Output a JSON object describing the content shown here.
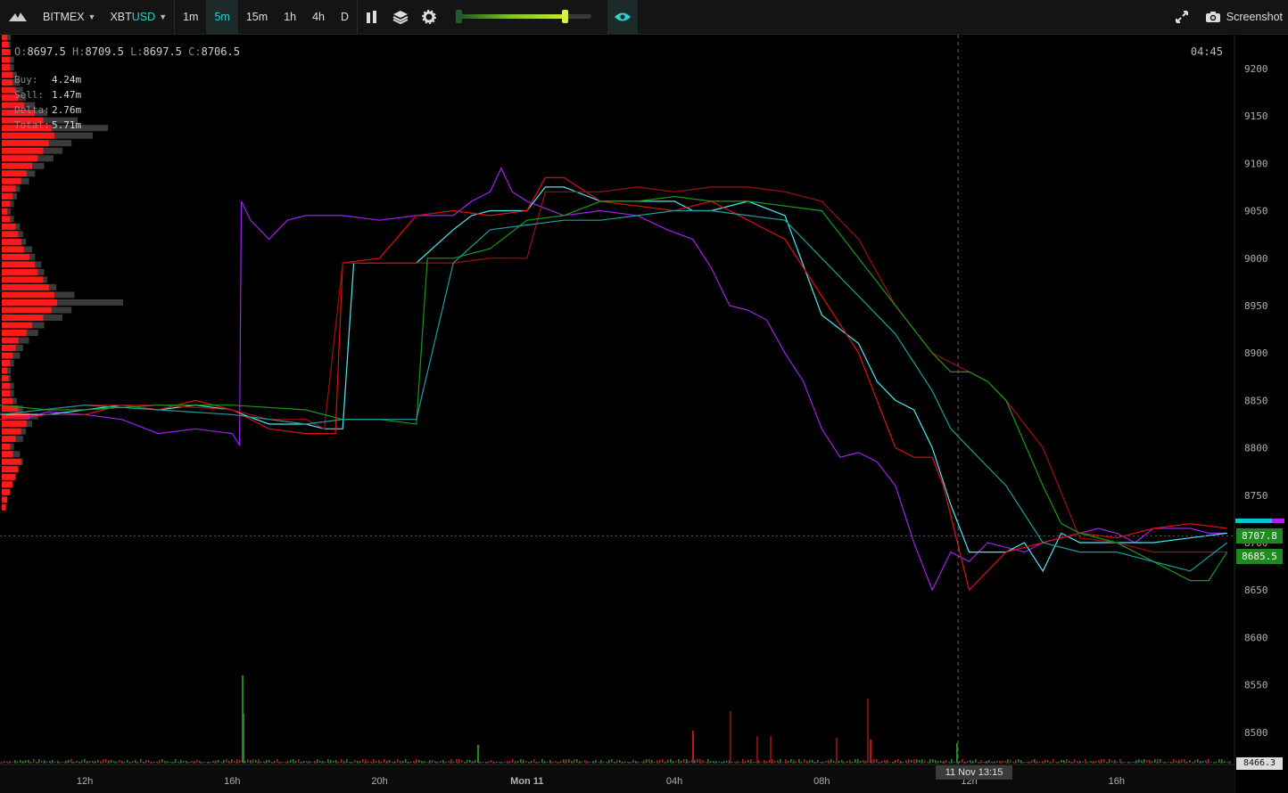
{
  "toolbar": {
    "exchange": "BITMEX",
    "symbol_base": "XBT",
    "symbol_quote": "USD",
    "timeframes": [
      "1m",
      "5m",
      "15m",
      "1h",
      "4h",
      "D"
    ],
    "active_timeframe": "5m",
    "screenshot_label": "Screenshot",
    "icons": [
      "logo-icon",
      "chevron-down-icon",
      "bar-chart-icon",
      "layers-icon",
      "gear-icon",
      "eye-icon",
      "expand-icon",
      "camera-icon"
    ],
    "slider_level": 0.8
  },
  "ohlc": {
    "o_label": "O:",
    "o": "8697.5",
    "h_label": "H:",
    "h": "8709.5",
    "l_label": "L:",
    "l": "8697.5",
    "c_label": "C:",
    "c": "8706.5"
  },
  "stats": {
    "buy_label": "Buy:",
    "buy": "4.24m",
    "sell_label": "Sell:",
    "sell": "1.47m",
    "delta_label": "Delta:",
    "delta": "2.76m",
    "total_label": "Total:",
    "total": "5.71m"
  },
  "clock": "04:45",
  "price_badges": [
    "8707.8",
    "8685.5"
  ],
  "last_price_label": "8466.3",
  "crosshair_label": "11 Nov 13:15",
  "colors": {
    "background": "#000000",
    "purple": "#a020f0",
    "cyan": "#4de8f0",
    "red": "#e01010",
    "dark_red": "#a01010",
    "green": "#1a9a1a",
    "teal": "#18a0a0",
    "profile_buy": "#ff1a1a",
    "profile_sell": "#3a3a3a",
    "badge": "#1f8a1f"
  },
  "chart_data": {
    "type": "line",
    "ylim": [
      8466,
      9230
    ],
    "y_ticks": [
      9200,
      9150,
      9100,
      9050,
      9000,
      8950,
      8900,
      8850,
      8800,
      8750,
      8700,
      8650,
      8600,
      8550,
      8500
    ],
    "x_ticks": [
      "12h",
      "16h",
      "20h",
      "Mon 11",
      "04h",
      "08h",
      "12h",
      "16h"
    ],
    "x_hours": [
      12,
      16,
      20,
      24,
      28,
      32,
      36,
      40
    ],
    "x_range_hours": [
      9.7,
      43.2
    ],
    "crosshair_hour": 35.7,
    "last_price": 8707,
    "series": [
      {
        "color_key": "purple",
        "points": [
          [
            9.7,
            8830
          ],
          [
            10.5,
            8832
          ],
          [
            11,
            8838
          ],
          [
            12,
            8835
          ],
          [
            13,
            8830
          ],
          [
            14,
            8815
          ],
          [
            15,
            8820
          ],
          [
            16,
            8815
          ],
          [
            16.2,
            8803
          ],
          [
            16.25,
            9060
          ],
          [
            16.5,
            9040
          ],
          [
            17,
            9020
          ],
          [
            17.5,
            9040
          ],
          [
            18,
            9045
          ],
          [
            19,
            9045
          ],
          [
            20,
            9040
          ],
          [
            21,
            9045
          ],
          [
            22,
            9045
          ],
          [
            22.5,
            9060
          ],
          [
            23,
            9070
          ],
          [
            23.3,
            9095
          ],
          [
            23.6,
            9070
          ],
          [
            24,
            9060
          ],
          [
            25,
            9045
          ],
          [
            26,
            9050
          ],
          [
            27,
            9045
          ],
          [
            27.8,
            9030
          ],
          [
            28.5,
            9020
          ],
          [
            29,
            8990
          ],
          [
            29.5,
            8950
          ],
          [
            30,
            8945
          ],
          [
            30.5,
            8935
          ],
          [
            31,
            8900
          ],
          [
            31.5,
            8870
          ],
          [
            32,
            8820
          ],
          [
            32.5,
            8790
          ],
          [
            33,
            8795
          ],
          [
            33.5,
            8785
          ],
          [
            34,
            8760
          ],
          [
            34.5,
            8700
          ],
          [
            35,
            8650
          ],
          [
            35.5,
            8690
          ],
          [
            36,
            8680
          ],
          [
            36.5,
            8700
          ],
          [
            37,
            8695
          ],
          [
            37.5,
            8690
          ],
          [
            38,
            8700
          ],
          [
            38.5,
            8705
          ],
          [
            39,
            8710
          ],
          [
            39.5,
            8715
          ],
          [
            40,
            8710
          ],
          [
            40.5,
            8700
          ],
          [
            41,
            8715
          ],
          [
            42,
            8715
          ],
          [
            42.5,
            8710
          ],
          [
            43,
            8710
          ]
        ]
      },
      {
        "color_key": "cyan",
        "points": [
          [
            9.7,
            8835
          ],
          [
            11,
            8835
          ],
          [
            13,
            8845
          ],
          [
            14,
            8840
          ],
          [
            15,
            8845
          ],
          [
            16,
            8840
          ],
          [
            16.3,
            8835
          ],
          [
            17,
            8825
          ],
          [
            18,
            8825
          ],
          [
            18.5,
            8820
          ],
          [
            19,
            8820
          ],
          [
            19.3,
            8995
          ],
          [
            20,
            8995
          ],
          [
            21,
            8995
          ],
          [
            22,
            9030
          ],
          [
            22.5,
            9045
          ],
          [
            23,
            9050
          ],
          [
            24,
            9050
          ],
          [
            24.5,
            9075
          ],
          [
            25,
            9075
          ],
          [
            26,
            9060
          ],
          [
            27,
            9060
          ],
          [
            28,
            9060
          ],
          [
            28.5,
            9050
          ],
          [
            29,
            9050
          ],
          [
            30,
            9060
          ],
          [
            31,
            9045
          ],
          [
            32,
            8940
          ],
          [
            33,
            8910
          ],
          [
            33.5,
            8870
          ],
          [
            34,
            8850
          ],
          [
            34.5,
            8840
          ],
          [
            35,
            8800
          ],
          [
            35.5,
            8740
          ],
          [
            36,
            8690
          ],
          [
            37,
            8690
          ],
          [
            37.5,
            8700
          ],
          [
            38,
            8670
          ],
          [
            38.5,
            8710
          ],
          [
            39,
            8700
          ],
          [
            40,
            8700
          ],
          [
            41,
            8700
          ],
          [
            42,
            8705
          ],
          [
            43,
            8710
          ]
        ]
      },
      {
        "color_key": "red",
        "points": [
          [
            9.7,
            8830
          ],
          [
            11,
            8835
          ],
          [
            12,
            8835
          ],
          [
            13,
            8845
          ],
          [
            14,
            8840
          ],
          [
            15,
            8850
          ],
          [
            16,
            8840
          ],
          [
            16.5,
            8830
          ],
          [
            17,
            8820
          ],
          [
            18,
            8815
          ],
          [
            18.8,
            8815
          ],
          [
            19,
            8995
          ],
          [
            20,
            9000
          ],
          [
            21,
            9045
          ],
          [
            22,
            9050
          ],
          [
            23,
            9045
          ],
          [
            24,
            9050
          ],
          [
            24.5,
            9085
          ],
          [
            25,
            9085
          ],
          [
            26,
            9060
          ],
          [
            27,
            9055
          ],
          [
            28,
            9050
          ],
          [
            29,
            9060
          ],
          [
            30,
            9040
          ],
          [
            31,
            9020
          ],
          [
            32,
            8960
          ],
          [
            33,
            8900
          ],
          [
            34,
            8800
          ],
          [
            34.5,
            8790
          ],
          [
            35,
            8790
          ],
          [
            35.3,
            8760
          ],
          [
            36,
            8650
          ],
          [
            36.5,
            8670
          ],
          [
            37,
            8690
          ],
          [
            38,
            8700
          ],
          [
            39,
            8710
          ],
          [
            40,
            8705
          ],
          [
            41,
            8715
          ],
          [
            42,
            8720
          ],
          [
            43,
            8715
          ]
        ]
      },
      {
        "color_key": "dark_red",
        "points": [
          [
            9.7,
            8835
          ],
          [
            12,
            8845
          ],
          [
            14,
            8845
          ],
          [
            16,
            8840
          ],
          [
            17,
            8830
          ],
          [
            18,
            8830
          ],
          [
            18.5,
            8820
          ],
          [
            19,
            8995
          ],
          [
            20,
            8995
          ],
          [
            21,
            8995
          ],
          [
            22,
            8995
          ],
          [
            23,
            9000
          ],
          [
            24,
            9000
          ],
          [
            24.5,
            9070
          ],
          [
            25,
            9070
          ],
          [
            26,
            9070
          ],
          [
            27,
            9075
          ],
          [
            28,
            9070
          ],
          [
            29,
            9075
          ],
          [
            30,
            9075
          ],
          [
            31,
            9070
          ],
          [
            32,
            9060
          ],
          [
            33,
            9020
          ],
          [
            34,
            8950
          ],
          [
            35,
            8900
          ],
          [
            36,
            8880
          ],
          [
            36.5,
            8870
          ],
          [
            37,
            8850
          ],
          [
            38,
            8800
          ],
          [
            39,
            8705
          ],
          [
            40,
            8700
          ],
          [
            41,
            8690
          ],
          [
            42,
            8690
          ],
          [
            43,
            8690
          ]
        ]
      },
      {
        "color_key": "green",
        "points": [
          [
            9.7,
            8845
          ],
          [
            11,
            8840
          ],
          [
            12,
            8840
          ],
          [
            14,
            8845
          ],
          [
            16,
            8845
          ],
          [
            18,
            8840
          ],
          [
            19,
            8830
          ],
          [
            20,
            8830
          ],
          [
            21,
            8825
          ],
          [
            21.3,
            9000
          ],
          [
            22,
            9000
          ],
          [
            23,
            9010
          ],
          [
            24,
            9040
          ],
          [
            25,
            9045
          ],
          [
            26,
            9060
          ],
          [
            27,
            9060
          ],
          [
            28,
            9065
          ],
          [
            29,
            9060
          ],
          [
            30,
            9060
          ],
          [
            31,
            9055
          ],
          [
            32,
            9050
          ],
          [
            33,
            9000
          ],
          [
            34,
            8950
          ],
          [
            35,
            8900
          ],
          [
            35.5,
            8880
          ],
          [
            36,
            8880
          ],
          [
            36.5,
            8870
          ],
          [
            37,
            8850
          ],
          [
            38,
            8760
          ],
          [
            38.5,
            8720
          ],
          [
            39,
            8710
          ],
          [
            40,
            8700
          ],
          [
            41,
            8680
          ],
          [
            42,
            8660
          ],
          [
            42.5,
            8660
          ],
          [
            43,
            8690
          ]
        ]
      },
      {
        "color_key": "teal",
        "points": [
          [
            9.7,
            8835
          ],
          [
            12,
            8845
          ],
          [
            14,
            8840
          ],
          [
            16,
            8835
          ],
          [
            18,
            8825
          ],
          [
            19,
            8830
          ],
          [
            20,
            8830
          ],
          [
            21,
            8830
          ],
          [
            22,
            8995
          ],
          [
            23,
            9030
          ],
          [
            24,
            9035
          ],
          [
            25,
            9040
          ],
          [
            26,
            9040
          ],
          [
            27,
            9045
          ],
          [
            28,
            9050
          ],
          [
            29,
            9050
          ],
          [
            30,
            9045
          ],
          [
            31,
            9040
          ],
          [
            32,
            9000
          ],
          [
            33,
            8960
          ],
          [
            34,
            8920
          ],
          [
            35,
            8860
          ],
          [
            35.5,
            8820
          ],
          [
            36,
            8800
          ],
          [
            37,
            8760
          ],
          [
            38,
            8700
          ],
          [
            39,
            8690
          ],
          [
            40,
            8690
          ],
          [
            41,
            8680
          ],
          [
            42,
            8670
          ],
          [
            43,
            8700
          ]
        ]
      }
    ],
    "volume_profile": {
      "price_step": 8,
      "buy": [
        0,
        0,
        0,
        0,
        0,
        0,
        0,
        0,
        0,
        0,
        0,
        0,
        0,
        0,
        0,
        0,
        0,
        0,
        0,
        0,
        0,
        0,
        0,
        3,
        4,
        6,
        8,
        10,
        12,
        14,
        8,
        6,
        10,
        14,
        18,
        20,
        12,
        8,
        6,
        6,
        5,
        4,
        6,
        8,
        10,
        12,
        18,
        22,
        30,
        36,
        40,
        38,
        34,
        30,
        26,
        24,
        20,
        16,
        14,
        12,
        10,
        6,
        4,
        6,
        8,
        10,
        14,
        18,
        22,
        26,
        30,
        34,
        38,
        36,
        30,
        24,
        16,
        12,
        10,
        8,
        8,
        6,
        6,
        6,
        5,
        4,
        4,
        3,
        3,
        3,
        2,
        2,
        2,
        2,
        1,
        1
      ],
      "sell": [
        0,
        0,
        0,
        0,
        0,
        0,
        0,
        0,
        0,
        0,
        0,
        0,
        0,
        0,
        0,
        0,
        0,
        0,
        0,
        0,
        0,
        0,
        0,
        2,
        2,
        4,
        6,
        8,
        10,
        14,
        12,
        8,
        14,
        16,
        20,
        24,
        14,
        10,
        8,
        8,
        6,
        6,
        8,
        12,
        14,
        18,
        24,
        28,
        40,
        46,
        80,
        48,
        36,
        30,
        28,
        26,
        22,
        20,
        16,
        14,
        12,
        8,
        6,
        8,
        10,
        12,
        18,
        22,
        28,
        34,
        40,
        46,
        60,
        70,
        50,
        30,
        22,
        16,
        14,
        12,
        10,
        8,
        8,
        6,
        6,
        6,
        5,
        4,
        4,
        3,
        3,
        3,
        2,
        2,
        1,
        1
      ]
    },
    "volume_bars_note": "shown as small red/green histogram at bottom"
  }
}
